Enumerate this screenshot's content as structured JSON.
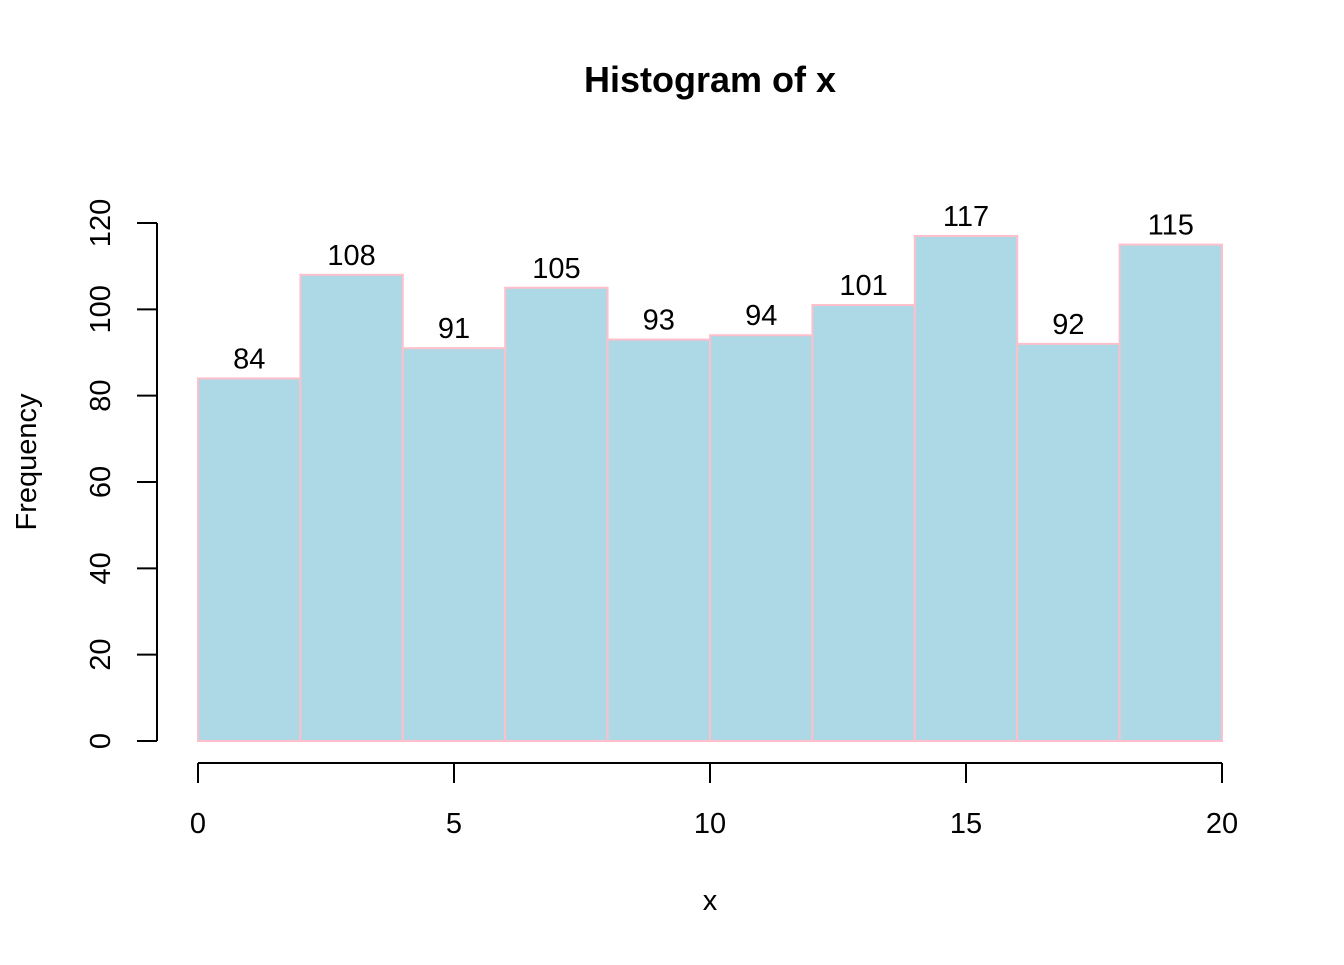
{
  "chart_data": {
    "type": "bar",
    "subtype": "histogram",
    "title": "Histogram of x",
    "xlabel": "x",
    "ylabel": "Frequency",
    "bin_edges": [
      0,
      2,
      4,
      6,
      8,
      10,
      12,
      14,
      16,
      18,
      20
    ],
    "values": [
      84,
      108,
      91,
      105,
      93,
      94,
      101,
      117,
      92,
      115
    ],
    "data_labels": [
      "84",
      "108",
      "91",
      "105",
      "93",
      "94",
      "101",
      "117",
      "92",
      "115"
    ],
    "xlim": [
      0,
      20
    ],
    "ylim": [
      0,
      120
    ],
    "x_ticks": [
      0,
      5,
      10,
      15,
      20
    ],
    "x_tick_labels": [
      "0",
      "5",
      "10",
      "15",
      "20"
    ],
    "y_ticks": [
      0,
      20,
      40,
      60,
      80,
      100,
      120
    ],
    "y_tick_labels": [
      "0",
      "20",
      "40",
      "60",
      "80",
      "100",
      "120"
    ],
    "grid": false,
    "legend": "none",
    "colors": {
      "bar_fill": "#add8e6",
      "bar_border": "#ffc0cb",
      "axis": "#000000",
      "text": "#000000",
      "background": "#ffffff"
    }
  }
}
